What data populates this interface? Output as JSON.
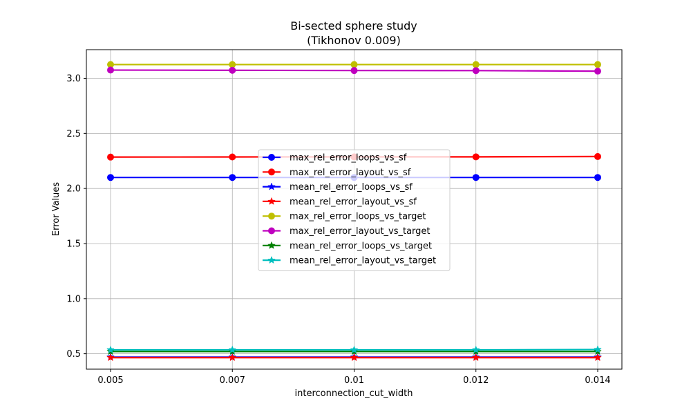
{
  "chart_data": {
    "type": "line",
    "title": "Bi-sected sphere study",
    "subtitle": "(Tikhonov 0.009)",
    "xlabel": "interconnection_cut_width",
    "ylabel": "Error Values",
    "categories": [
      "0.005",
      "0.007",
      "0.01",
      "0.012",
      "0.014"
    ],
    "yticks": [
      "0.5",
      "1.0",
      "1.5",
      "2.0",
      "2.5",
      "3.0"
    ],
    "ylim": [
      0.36,
      3.26
    ],
    "grid": true,
    "legend_position": "center",
    "series": [
      {
        "name": "max_rel_error_loops_vs_sf",
        "color": "#0000ff",
        "marker": "circle",
        "values": [
          2.1,
          2.1,
          2.1,
          2.1,
          2.1
        ]
      },
      {
        "name": "max_rel_error_layout_vs_sf",
        "color": "#ff0000",
        "marker": "circle",
        "values": [
          2.285,
          2.286,
          2.287,
          2.287,
          2.29
        ]
      },
      {
        "name": "mean_rel_error_loops_vs_sf",
        "color": "#0000ff",
        "marker": "star",
        "values": [
          0.47,
          0.47,
          0.47,
          0.47,
          0.47
        ]
      },
      {
        "name": "mean_rel_error_layout_vs_sf",
        "color": "#ff0000",
        "marker": "star",
        "values": [
          0.465,
          0.465,
          0.465,
          0.465,
          0.465
        ]
      },
      {
        "name": "max_rel_error_loops_vs_target",
        "color": "#bfbf00",
        "marker": "circle",
        "values": [
          3.125,
          3.125,
          3.125,
          3.125,
          3.125
        ]
      },
      {
        "name": "max_rel_error_layout_vs_target",
        "color": "#bf00bf",
        "marker": "circle",
        "values": [
          3.075,
          3.073,
          3.071,
          3.07,
          3.065
        ]
      },
      {
        "name": "mean_rel_error_loops_vs_target",
        "color": "#008000",
        "marker": "star",
        "values": [
          0.52,
          0.52,
          0.52,
          0.52,
          0.52
        ]
      },
      {
        "name": "mean_rel_error_layout_vs_target",
        "color": "#00bfbf",
        "marker": "star",
        "values": [
          0.535,
          0.535,
          0.535,
          0.535,
          0.538
        ]
      }
    ]
  }
}
